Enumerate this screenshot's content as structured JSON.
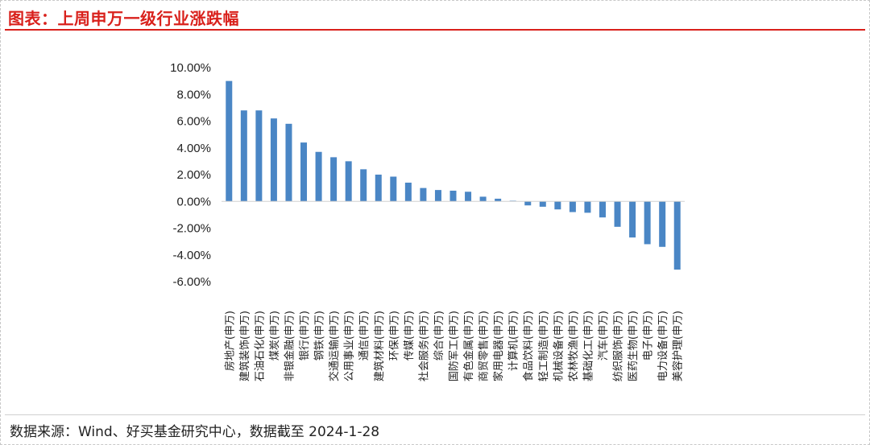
{
  "title": "图表：上周申万一级行业涨跌幅",
  "source": "数据来源：Wind、好买基金研究中心，数据截至  2024-1-28",
  "colors": {
    "bar": "#4a86c5",
    "accent": "#d9211c"
  },
  "chart_data": {
    "type": "bar",
    "title": "",
    "xlabel": "",
    "ylabel": "",
    "ylim": [
      -6,
      10
    ],
    "yticks": [
      10,
      8,
      6,
      4,
      2,
      0,
      -2,
      -4,
      -6
    ],
    "ytick_labels": [
      "10.00%",
      "8.00%",
      "6.00%",
      "4.00%",
      "2.00%",
      "0.00%",
      "-2.00%",
      "-4.00%",
      "-6.00%"
    ],
    "grid": false,
    "legend": "none",
    "categories": [
      "房地产(申万)",
      "建筑装饰(申万)",
      "石油石化(申万)",
      "煤炭(申万)",
      "非银金融(申万)",
      "银行(申万)",
      "钢铁(申万)",
      "交通运输(申万)",
      "公用事业(申万)",
      "通信(申万)",
      "建筑材料(申万)",
      "环保(申万)",
      "传媒(申万)",
      "社会服务(申万)",
      "综合(申万)",
      "国防军工(申万)",
      "有色金属(申万)",
      "商贸零售(申万)",
      "家用电器(申万)",
      "计算机(申万)",
      "食品饮料(申万)",
      "轻工制造(申万)",
      "机械设备(申万)",
      "农林牧渔(申万)",
      "基础化工(申万)",
      "汽车(申万)",
      "纺织服饰(申万)",
      "医药生物(申万)",
      "电子(申万)",
      "电力设备(申万)",
      "美容护理(申万)"
    ],
    "values": [
      9.0,
      6.8,
      6.8,
      6.2,
      5.8,
      4.4,
      3.7,
      3.3,
      3.0,
      2.4,
      2.0,
      1.85,
      1.4,
      1.0,
      0.85,
      0.8,
      0.72,
      0.35,
      0.2,
      0.05,
      -0.3,
      -0.4,
      -0.6,
      -0.8,
      -0.85,
      -1.2,
      -1.9,
      -2.7,
      -3.2,
      -3.4,
      -5.1
    ],
    "unit": "%"
  }
}
